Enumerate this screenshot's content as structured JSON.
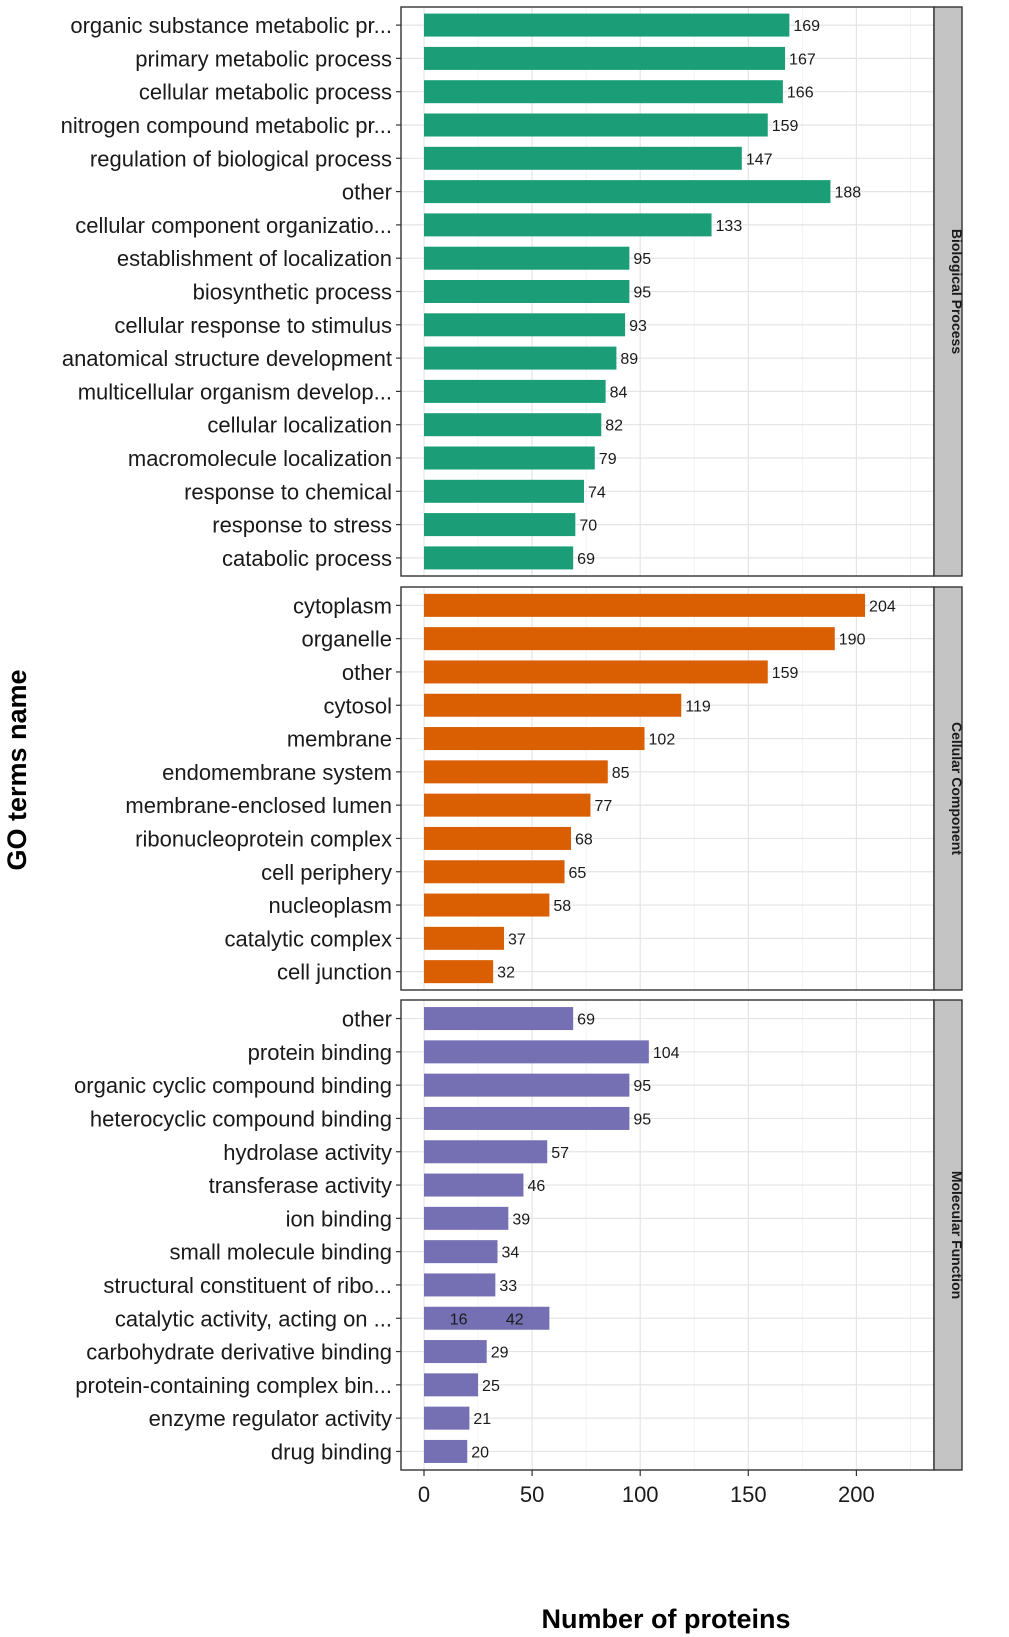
{
  "chart_data": {
    "type": "bar",
    "orientation": "horizontal",
    "xlabel": "Number of proteins",
    "ylabel": "GO terms name",
    "xlim": [
      -10,
      235
    ],
    "x_ticks": [
      0,
      50,
      100,
      150,
      200
    ],
    "grid": true,
    "panels": [
      {
        "name": "Biological Process",
        "color": "#1b9e77",
        "categories": [
          "organic substance metabolic pr...",
          "primary metabolic process",
          "cellular metabolic process",
          "nitrogen compound metabolic pr...",
          "regulation of biological process",
          "other",
          "cellular component organizatio...",
          "establishment of localization",
          "biosynthetic process",
          "cellular response to stimulus",
          "anatomical structure development",
          "multicellular organism develop...",
          "cellular localization",
          "macromolecule localization",
          "response to chemical",
          "response to stress",
          "catabolic process"
        ],
        "values": [
          169,
          167,
          166,
          159,
          147,
          188,
          133,
          95,
          95,
          93,
          89,
          84,
          82,
          79,
          74,
          70,
          69
        ]
      },
      {
        "name": "Cellular Component",
        "color": "#d95f02",
        "categories": [
          "cytoplasm",
          "organelle",
          "other",
          "cytosol",
          "membrane",
          "endomembrane system",
          "membrane-enclosed lumen",
          "ribonucleoprotein complex",
          "cell periphery",
          "nucleoplasm",
          "catalytic complex",
          "cell junction"
        ],
        "values": [
          204,
          190,
          159,
          119,
          102,
          85,
          77,
          68,
          65,
          58,
          37,
          32
        ]
      },
      {
        "name": "Molecular Function",
        "color": "#7570b3",
        "categories": [
          "other",
          "protein binding",
          "organic cyclic compound binding",
          "heterocyclic compound binding",
          "hydrolase activity",
          "transferase activity",
          "ion binding",
          "small molecule binding",
          "structural constituent of ribo...",
          "catalytic activity, acting on ...",
          "carbohydrate derivative binding",
          "protein-containing complex bin...",
          "enzyme regulator activity",
          "drug binding"
        ],
        "values": [
          69,
          104,
          95,
          95,
          57,
          46,
          39,
          34,
          33,
          58,
          29,
          25,
          21,
          20
        ],
        "segments": [
          null,
          null,
          null,
          null,
          null,
          null,
          null,
          null,
          null,
          [
            16,
            42
          ],
          null,
          null,
          null,
          null
        ]
      }
    ]
  }
}
